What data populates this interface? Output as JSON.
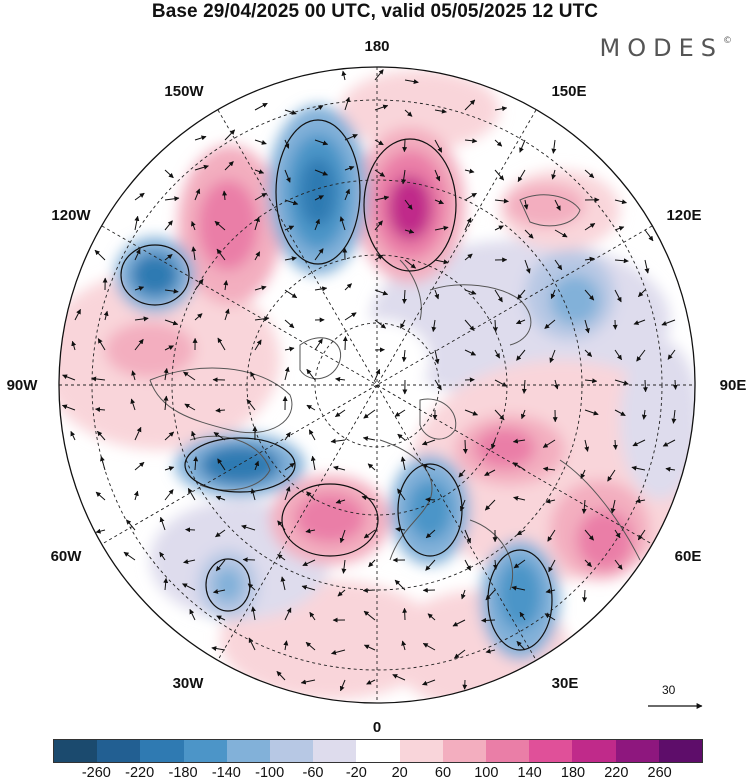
{
  "header": {
    "title": "Base 29/04/2025 00 UTC, valid 05/05/2025 12 UTC",
    "brand": "MODES"
  },
  "map": {
    "projection": "north-polar-stereographic",
    "longitude_labels": {
      "top": "180",
      "top_left": "150W",
      "top_right": "150E",
      "upper_left": "120W",
      "upper_right": "120E",
      "left": "90W",
      "right": "90E",
      "lower_left": "60W",
      "lower_right": "60E",
      "bottom_left": "30W",
      "bottom_right": "30E",
      "bottom": "0"
    },
    "vector_reference": "30",
    "colors": {
      "land_outline": "#555555",
      "grid": "#222222"
    }
  },
  "colorbar": {
    "tick_labels": [
      "-260",
      "-220",
      "-180",
      "-140",
      "-100",
      "-60",
      "-20",
      "20",
      "60",
      "100",
      "140",
      "180",
      "220",
      "260"
    ],
    "colors": [
      "#1b4a6e",
      "#225f92",
      "#2f7ab2",
      "#4c95c8",
      "#82b1d9",
      "#b7c8e4",
      "#dedced",
      "#ffffff",
      "#f9d5da",
      "#f3aebf",
      "#ea7ea7",
      "#e05099",
      "#c02a8a",
      "#8e177e",
      "#5e0d6a"
    ]
  }
}
